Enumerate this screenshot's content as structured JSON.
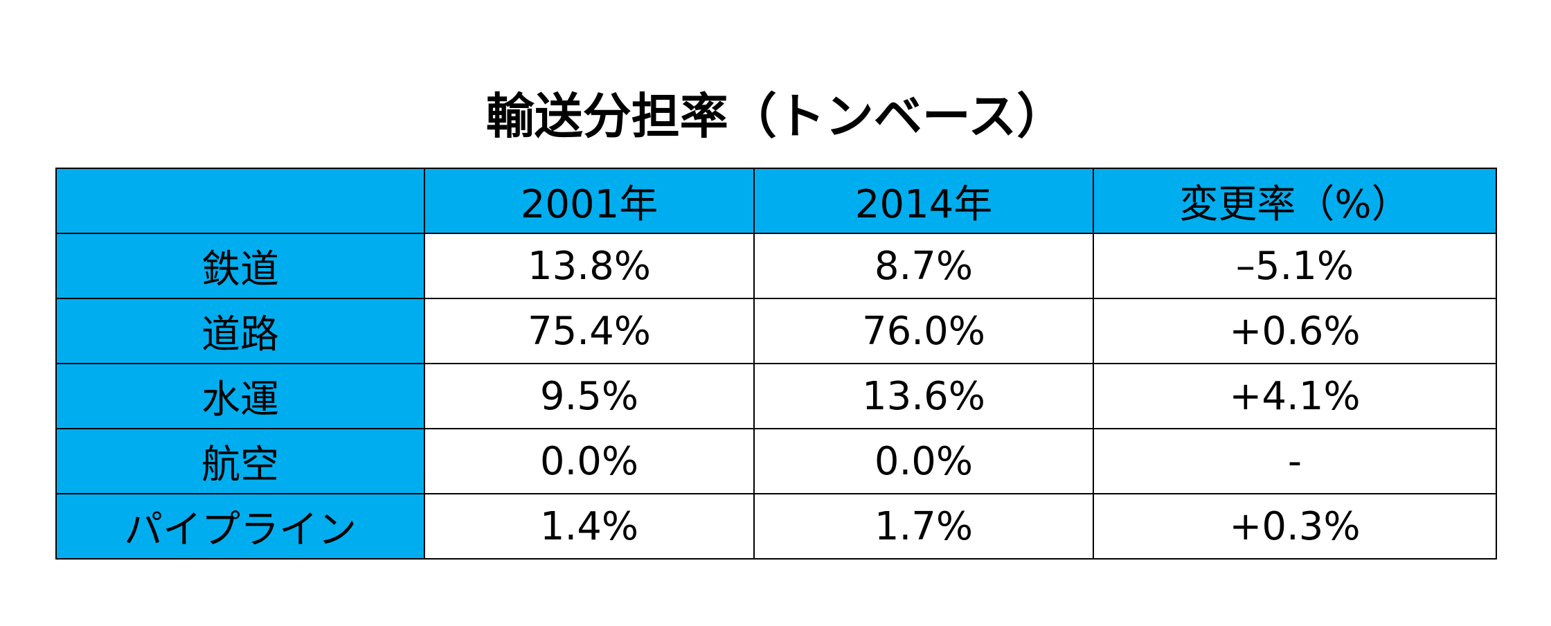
{
  "chart_data": {
    "type": "table",
    "title": "輸送分担率（トンベース）",
    "colors": {
      "header_fill": "#00aeef",
      "cell_fill": "#ffffff",
      "border": "#000000"
    },
    "columns": [
      "",
      "2001年",
      "2014年",
      "変更率（%）"
    ],
    "rows": [
      {
        "label": "鉄道",
        "values": [
          "13.8%",
          "8.7%",
          "–5.1%"
        ]
      },
      {
        "label": "道路",
        "values": [
          "75.4%",
          "76.0%",
          "+0.6%"
        ]
      },
      {
        "label": "水運",
        "values": [
          "9.5%",
          "13.6%",
          "+4.1%"
        ]
      },
      {
        "label": "航空",
        "values": [
          "0.0%",
          "0.0%",
          "-"
        ]
      },
      {
        "label": "パイプライン",
        "values": [
          "1.4%",
          "1.7%",
          "+0.3%"
        ]
      }
    ]
  }
}
